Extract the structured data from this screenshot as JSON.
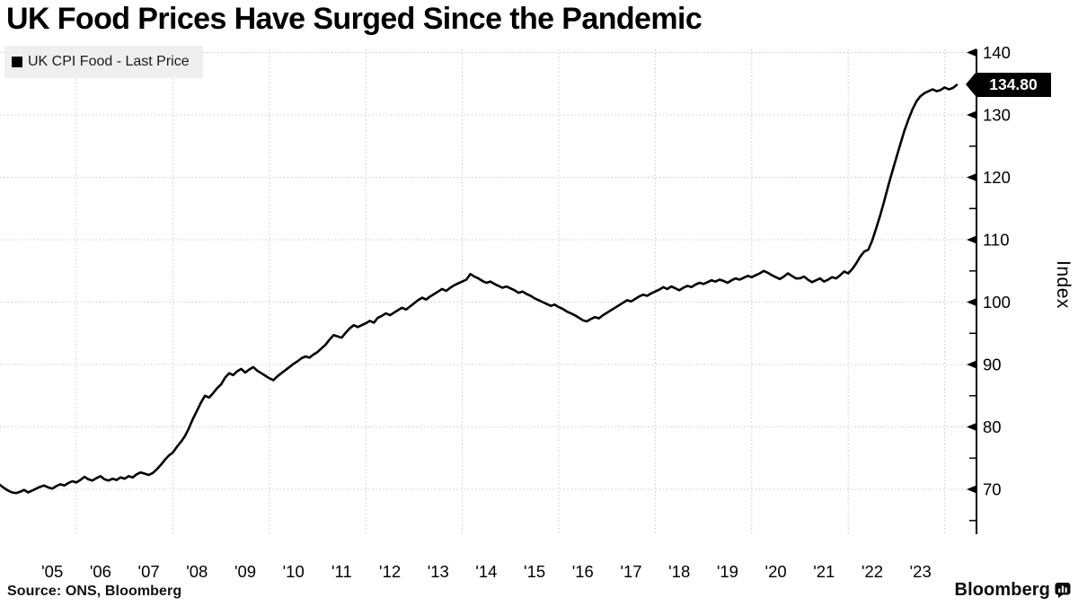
{
  "title": "UK Food Prices Have Surged Since the Pandemic",
  "legend": {
    "swatch_icon": "black-square",
    "swatch_color": "#000000",
    "label": "UK CPI Food - Last Price"
  },
  "last_price": {
    "label": "134.80",
    "value": 134.8
  },
  "y_axis": {
    "title": "Index"
  },
  "source": "Source: ONS, Bloomberg",
  "brand": {
    "name": "Bloomberg",
    "icon": "bloomberg-chart-bubble"
  },
  "colors": {
    "line": "#000000",
    "grid": "#c9c9c9",
    "axis": "#000000",
    "legend_bg": "#efefef",
    "tag_bg": "#000000",
    "tag_text": "#ffffff"
  },
  "chart_data": {
    "type": "line",
    "title": "UK Food Prices Have Surged Since the Pandemic",
    "ylabel": "Index",
    "ylim": [
      62.5,
      141
    ],
    "yticks": [
      70,
      80,
      90,
      100,
      110,
      120,
      130,
      140
    ],
    "y_minor_tick_step": 5,
    "grid": "dotted",
    "legend_position": "top-left",
    "x_gridlines": "january-of-even-years",
    "xticklabels": [
      "'05",
      "'06",
      "'07",
      "'08",
      "'09",
      "'10",
      "'11",
      "'12",
      "'13",
      "'14",
      "'15",
      "'16",
      "'17",
      "'18",
      "'19",
      "'20",
      "'21",
      "'22",
      "'23"
    ],
    "last_value": 134.8,
    "series": [
      {
        "name": "UK CPI Food - Last Price",
        "start": "2004-06",
        "end": "2024-04",
        "frequency": "monthly",
        "values": [
          70.7,
          70.2,
          69.8,
          69.5,
          69.4,
          69.6,
          69.9,
          69.5,
          69.8,
          70.1,
          70.4,
          70.6,
          70.3,
          70.1,
          70.5,
          70.8,
          70.6,
          71.0,
          71.3,
          71.1,
          71.5,
          72.0,
          71.6,
          71.4,
          71.8,
          72.1,
          71.6,
          71.4,
          71.7,
          71.5,
          71.9,
          71.7,
          72.1,
          71.9,
          72.4,
          72.7,
          72.5,
          72.3,
          72.6,
          73.2,
          73.9,
          74.7,
          75.4,
          75.9,
          76.8,
          77.6,
          78.5,
          79.8,
          81.3,
          82.6,
          83.9,
          85.0,
          84.7,
          85.4,
          86.2,
          86.8,
          87.9,
          88.6,
          88.3,
          88.9,
          89.3,
          88.7,
          89.2,
          89.6,
          89.0,
          88.6,
          88.2,
          87.8,
          87.5,
          88.1,
          88.6,
          89.1,
          89.6,
          90.1,
          90.5,
          91.0,
          91.3,
          91.1,
          91.6,
          92.0,
          92.6,
          93.2,
          94.0,
          94.7,
          94.5,
          94.3,
          95.1,
          95.8,
          96.3,
          96.0,
          96.3,
          96.6,
          97.0,
          96.7,
          97.5,
          97.8,
          98.2,
          97.9,
          98.3,
          98.7,
          99.1,
          98.8,
          99.3,
          99.8,
          100.3,
          100.7,
          100.4,
          100.9,
          101.3,
          101.7,
          102.1,
          101.8,
          102.3,
          102.7,
          103.0,
          103.3,
          103.6,
          104.5,
          104.1,
          103.8,
          103.4,
          103.1,
          103.3,
          102.9,
          102.6,
          102.3,
          102.5,
          102.2,
          101.9,
          101.5,
          101.7,
          101.3,
          101.0,
          100.6,
          100.3,
          100.0,
          99.7,
          99.4,
          99.6,
          99.2,
          98.9,
          98.5,
          98.2,
          97.9,
          97.5,
          97.1,
          96.9,
          97.3,
          97.6,
          97.4,
          97.9,
          98.3,
          98.7,
          99.1,
          99.5,
          99.9,
          100.3,
          100.1,
          100.5,
          100.9,
          101.2,
          101.0,
          101.4,
          101.7,
          102.0,
          102.4,
          102.1,
          102.5,
          102.2,
          101.9,
          102.3,
          102.6,
          102.4,
          102.8,
          103.1,
          102.9,
          103.2,
          103.5,
          103.3,
          103.6,
          103.4,
          103.1,
          103.5,
          103.8,
          103.6,
          103.9,
          104.2,
          104.0,
          104.3,
          104.6,
          105.0,
          104.7,
          104.3,
          104.0,
          103.7,
          104.1,
          104.6,
          104.2,
          103.8,
          103.8,
          104.1,
          103.6,
          103.2,
          103.5,
          103.8,
          103.3,
          103.6,
          104.0,
          103.8,
          104.3,
          104.9,
          104.6,
          105.3,
          106.2,
          107.3,
          108.1,
          108.4,
          109.9,
          111.9,
          114.0,
          116.3,
          118.7,
          121.0,
          123.2,
          125.4,
          127.5,
          129.3,
          130.9,
          132.2,
          133.0,
          133.5,
          133.8,
          134.1,
          133.8,
          134.0,
          134.4,
          134.1,
          134.3,
          134.8
        ]
      }
    ]
  }
}
